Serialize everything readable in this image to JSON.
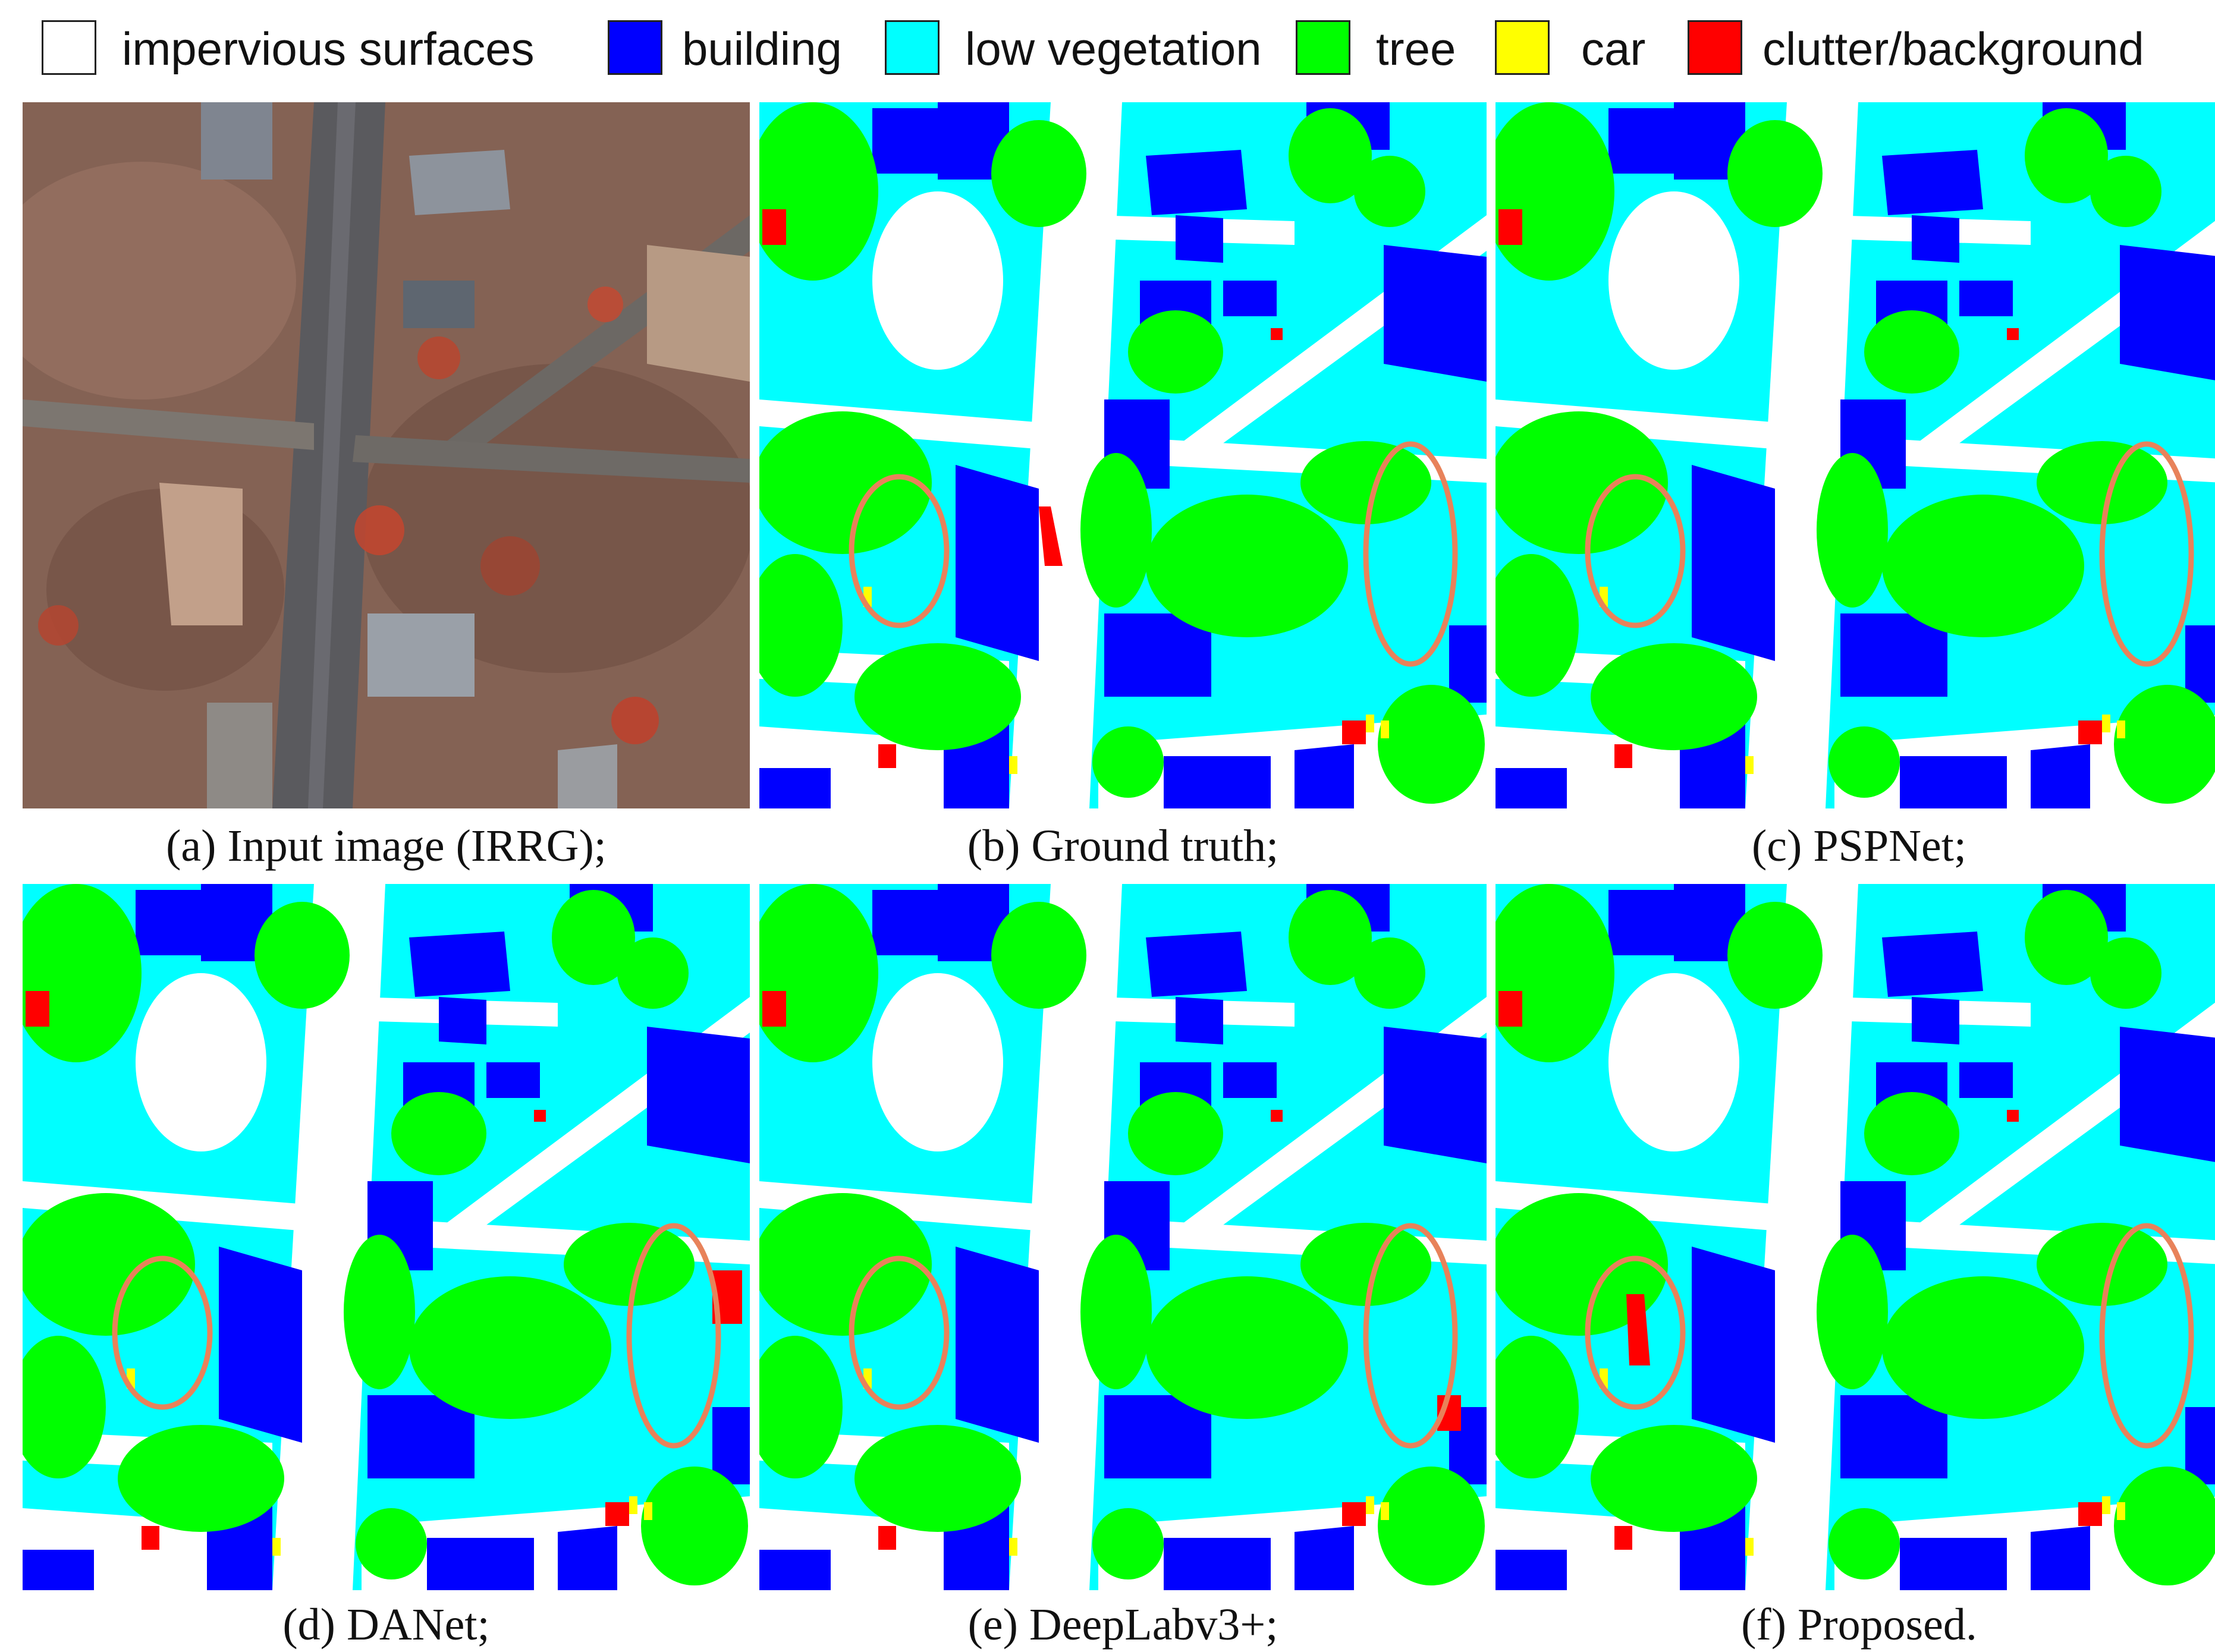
{
  "legend": {
    "items": [
      {
        "label": "impervious surfaces",
        "color": "#ffffff"
      },
      {
        "label": "building",
        "color": "#0000ff"
      },
      {
        "label": "low vegetation",
        "color": "#00ffff"
      },
      {
        "label": "tree",
        "color": "#00ff00"
      },
      {
        "label": "car",
        "color": "#ffff00"
      },
      {
        "label": "clutter/background",
        "color": "#ff0000"
      }
    ]
  },
  "panels": [
    {
      "id": "a",
      "caption": "(a) Input image (IRRG);"
    },
    {
      "id": "b",
      "caption": "(b) Ground truth;"
    },
    {
      "id": "c",
      "caption": "(c) PSPNet;"
    },
    {
      "id": "d",
      "caption": "(d) DANet;"
    },
    {
      "id": "e",
      "caption": "(e) DeepLabv3+;"
    },
    {
      "id": "f",
      "caption": "(f) Proposed."
    }
  ],
  "highlight_color": "#e8825a"
}
